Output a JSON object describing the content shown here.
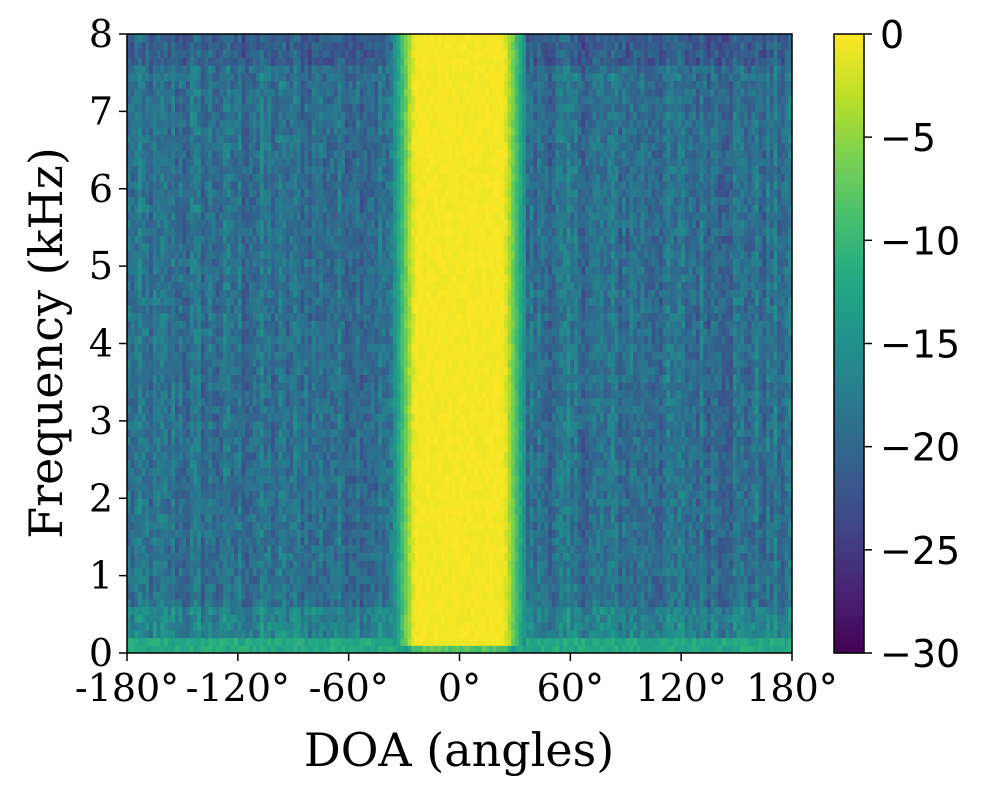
{
  "chart_data": {
    "type": "heatmap",
    "title": "",
    "xlabel": "DOA (angles)",
    "ylabel": "Frequency (kHz)",
    "x_ticks": [
      "-180°",
      "-120°",
      "-60°",
      "0°",
      "60°",
      "120°",
      "180°"
    ],
    "x_tick_values": [
      -180,
      -120,
      -60,
      0,
      60,
      120,
      180
    ],
    "xlim": [
      -180,
      180
    ],
    "y_ticks": [
      "0",
      "1",
      "2",
      "3",
      "4",
      "5",
      "6",
      "7",
      "8"
    ],
    "y_tick_values": [
      0,
      1,
      2,
      3,
      4,
      5,
      6,
      7,
      8
    ],
    "ylim": [
      0,
      8
    ],
    "colorbar": {
      "colormap": "viridis",
      "range": [
        -30,
        0
      ],
      "ticks": [
        "0",
        "−5",
        "−10",
        "−15",
        "−20",
        "−25",
        "−30"
      ],
      "tick_values": [
        0,
        -5,
        -10,
        -15,
        -20,
        -25,
        -30
      ]
    },
    "peak_doa_deg": 0,
    "peak_value": 0,
    "main_lobe_halfwidth_deg": 30,
    "background_level": -19,
    "low_freq_band_khz": [
      0,
      0.2
    ],
    "low_freq_band_level": -12,
    "grid": false,
    "colors": {
      "viridis_low": "#440154",
      "viridis_mid": "#21918c",
      "viridis_high": "#fde725"
    }
  }
}
